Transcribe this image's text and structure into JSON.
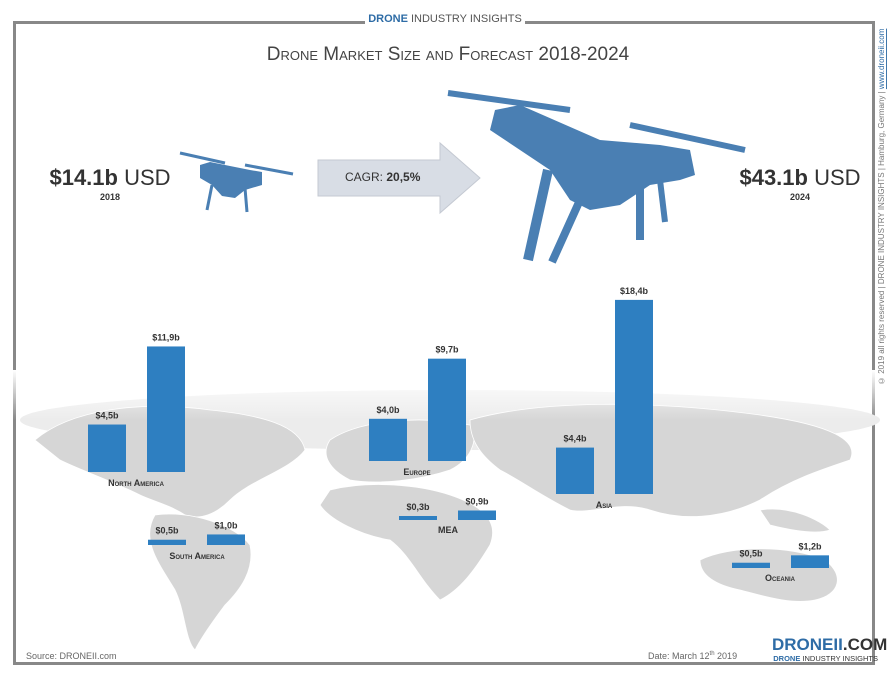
{
  "header": {
    "brand_strong": "DRONE",
    "brand_rest": " INDUSTRY INSIGHTS",
    "title": "Drone Market Size and Forecast 2018-2024"
  },
  "summary": {
    "start_value": "$14.1b",
    "start_unit": " USD",
    "start_year": "2018",
    "end_value": "$43.1b",
    "end_unit": " USD",
    "end_year": "2024",
    "cagr_label": "CAGR: ",
    "cagr_value": "20,5%"
  },
  "side_text": {
    "copyright": "© 2019 all rights reserved | DRONE INDUSTRY INSIGHTS | Hamburg, Germany | ",
    "url": "www.droneii.com"
  },
  "footer": {
    "source": "Source: DRONEII.com",
    "date_prefix": "Date: March 12",
    "date_sup": "th",
    "date_year": " 2019",
    "logo_main": "DRONEII",
    "logo_ext": ".COM",
    "logo_sub_strong": "DRONE",
    "logo_sub_rest": " INDUSTRY INSIGHTS"
  },
  "colors": {
    "bar": "#2e7fc1",
    "drone": "#4a7fb3",
    "map": "#d6d6d6",
    "arrow": "#d8dde5"
  },
  "chart_data": {
    "type": "bar",
    "title": "Drone Market Size and Forecast 2018-2024",
    "categories": [
      "North America",
      "Europe",
      "Asia",
      "South America",
      "MEA",
      "Oceania"
    ],
    "series": [
      {
        "name": "2018",
        "values": [
          4.5,
          4.0,
          4.4,
          0.5,
          0.3,
          0.5
        ],
        "labels": [
          "$4,5b",
          "$4,0b",
          "$4,4b",
          "$0,5b",
          "$0,3b",
          "$0,5b"
        ]
      },
      {
        "name": "2024",
        "values": [
          11.9,
          9.7,
          18.4,
          1.0,
          0.9,
          1.2
        ],
        "labels": [
          "$11,9b",
          "$9,7b",
          "$18,4b",
          "$1,0b",
          "$0,9b",
          "$1,2b"
        ]
      }
    ],
    "unit": "USD billion"
  }
}
